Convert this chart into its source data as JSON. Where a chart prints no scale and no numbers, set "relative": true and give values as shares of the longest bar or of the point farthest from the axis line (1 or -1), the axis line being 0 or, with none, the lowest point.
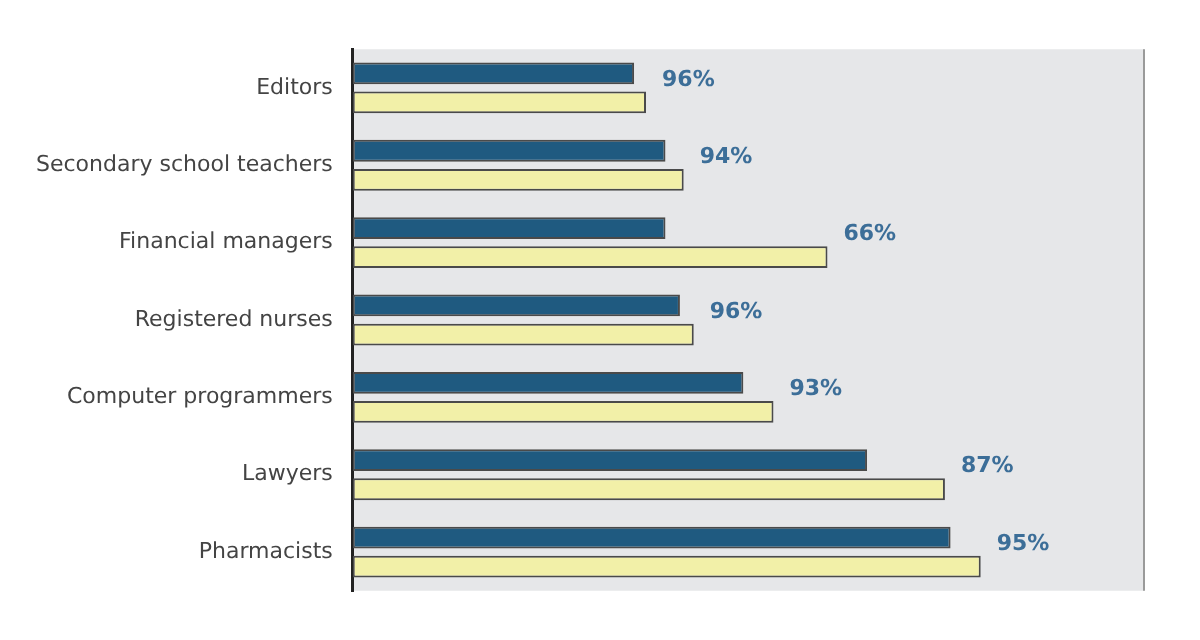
{
  "chart_data": {
    "type": "bar",
    "orientation": "horizontal",
    "relative": true,
    "grid": false,
    "legend": false,
    "categories": [
      "Editors",
      "Secondary school teachers",
      "Financial managers",
      "Registered nurses",
      "Computer programmers",
      "Lawyers",
      "Pharmacists"
    ],
    "series": [
      {
        "color": "#1f5a80",
        "values": [
          0.448,
          0.498,
          0.498,
          0.521,
          0.622,
          0.819,
          0.952
        ]
      },
      {
        "color": "#f2f0a8",
        "values": [
          0.467,
          0.527,
          0.756,
          0.543,
          0.67,
          0.943,
          1
        ]
      }
    ],
    "annotations": [
      {
        "text": "96%",
        "x": 0.467,
        "y": "Editors"
      },
      {
        "text": "94%",
        "x": 0.527,
        "y": "Secondary school teachers"
      },
      {
        "text": "66%",
        "x": 0.756,
        "y": "Financial managers"
      },
      {
        "text": "96%",
        "x": 0.543,
        "y": "Registered nurses"
      },
      {
        "text": "93%",
        "x": 0.67,
        "y": "Computer programmers"
      },
      {
        "text": "87%",
        "x": 0.943,
        "y": "Lawyers"
      },
      {
        "text": "95%",
        "x": 1,
        "y": "Pharmacists"
      }
    ]
  }
}
